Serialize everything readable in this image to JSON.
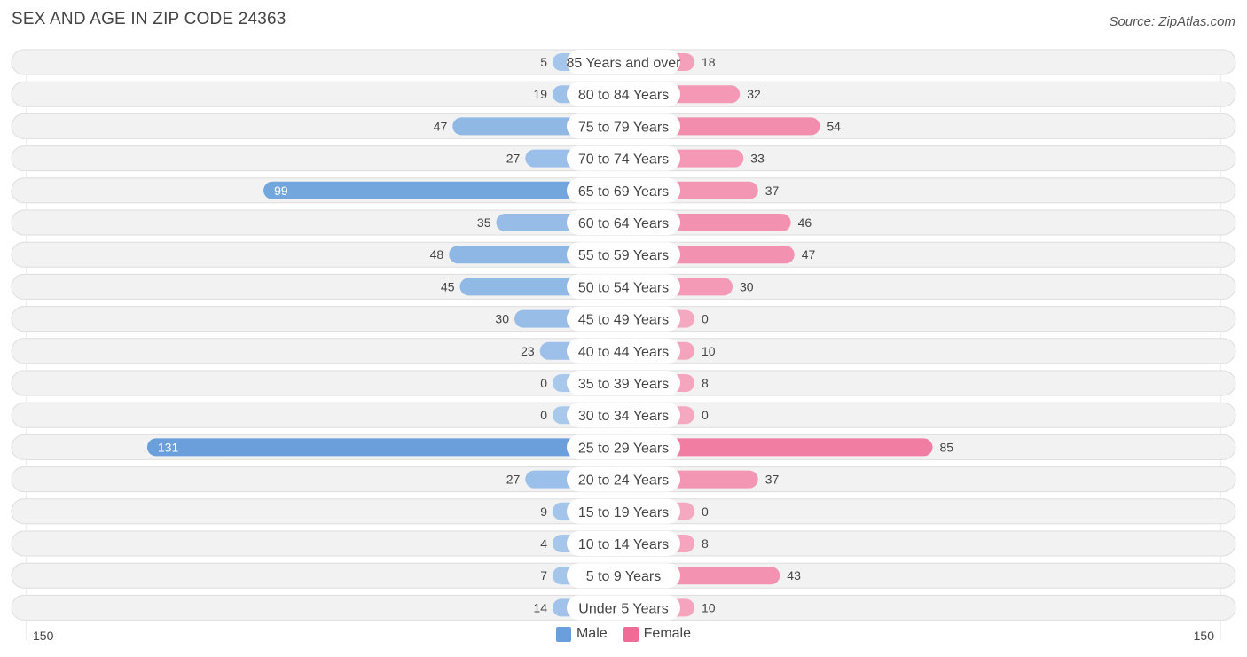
{
  "title": "SEX AND AGE IN ZIP CODE 24363",
  "source": "Source: ZipAtlas.com",
  "colors": {
    "male": "#6a9fdb",
    "male_light": "#a8c8ec",
    "female": "#f06b95",
    "female_light": "#f5a9c1"
  },
  "chart_data": {
    "type": "bar",
    "orientation": "horizontal-diverging",
    "categories": [
      "85 Years and over",
      "80 to 84 Years",
      "75 to 79 Years",
      "70 to 74 Years",
      "65 to 69 Years",
      "60 to 64 Years",
      "55 to 59 Years",
      "50 to 54 Years",
      "45 to 49 Years",
      "40 to 44 Years",
      "35 to 39 Years",
      "30 to 34 Years",
      "25 to 29 Years",
      "20 to 24 Years",
      "15 to 19 Years",
      "10 to 14 Years",
      "5 to 9 Years",
      "Under 5 Years"
    ],
    "series": [
      {
        "name": "Male",
        "values": [
          5,
          19,
          47,
          27,
          99,
          35,
          48,
          45,
          30,
          23,
          0,
          0,
          131,
          27,
          9,
          4,
          7,
          14
        ]
      },
      {
        "name": "Female",
        "values": [
          18,
          32,
          54,
          33,
          37,
          46,
          47,
          30,
          0,
          10,
          8,
          0,
          85,
          37,
          0,
          8,
          43,
          10
        ]
      }
    ],
    "axis": {
      "left_label": "150",
      "right_label": "150",
      "max": 150
    },
    "legend": {
      "position": "bottom-center",
      "items": [
        "Male",
        "Female"
      ]
    }
  }
}
